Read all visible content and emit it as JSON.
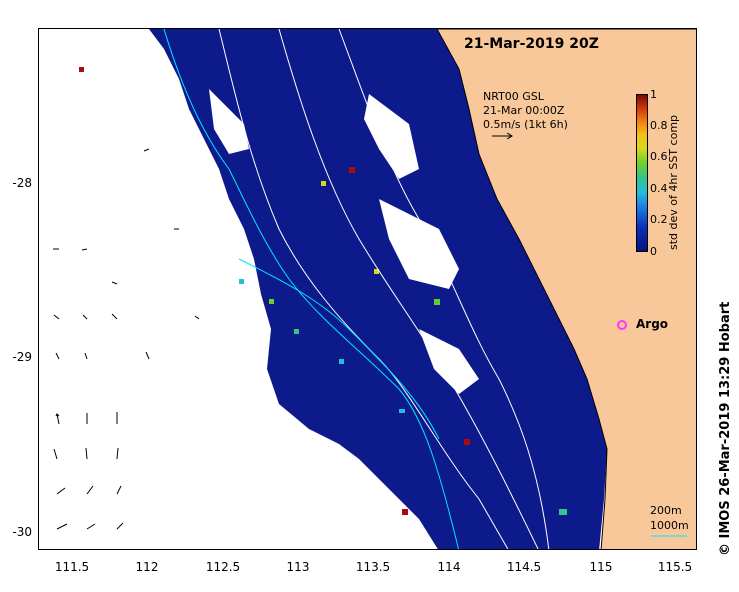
{
  "map": {
    "title": "21-Mar-2019 20Z",
    "velocity_legend": [
      "NRT00 GSL",
      "21-Mar 00:00Z",
      "0.5m/s (1kt 6h)"
    ],
    "colorbar": {
      "label": "std dev of 4hr SST comp",
      "ticks": [
        "1",
        "0.8",
        "0.6",
        "0.4",
        "0.2",
        "0"
      ],
      "range": [
        0,
        1
      ]
    },
    "lat_ticks": [
      "-28",
      "-29",
      "-30"
    ],
    "lon_ticks": [
      "111.5",
      "112",
      "112.5",
      "113",
      "113.5",
      "114",
      "114.5",
      "115",
      "115.5"
    ],
    "argo_label": "Argo",
    "scale_labels": [
      "200m",
      "1000m"
    ],
    "credit": "© IMOS 26-Mar-2019 13:29 Hobart",
    "colors": {
      "land": "#f9c89a",
      "ocean_low": "#0b127a",
      "bathy_200": "#ffffff",
      "bathy_1000": "#00e5ff",
      "argo": "#ff33ff"
    }
  }
}
